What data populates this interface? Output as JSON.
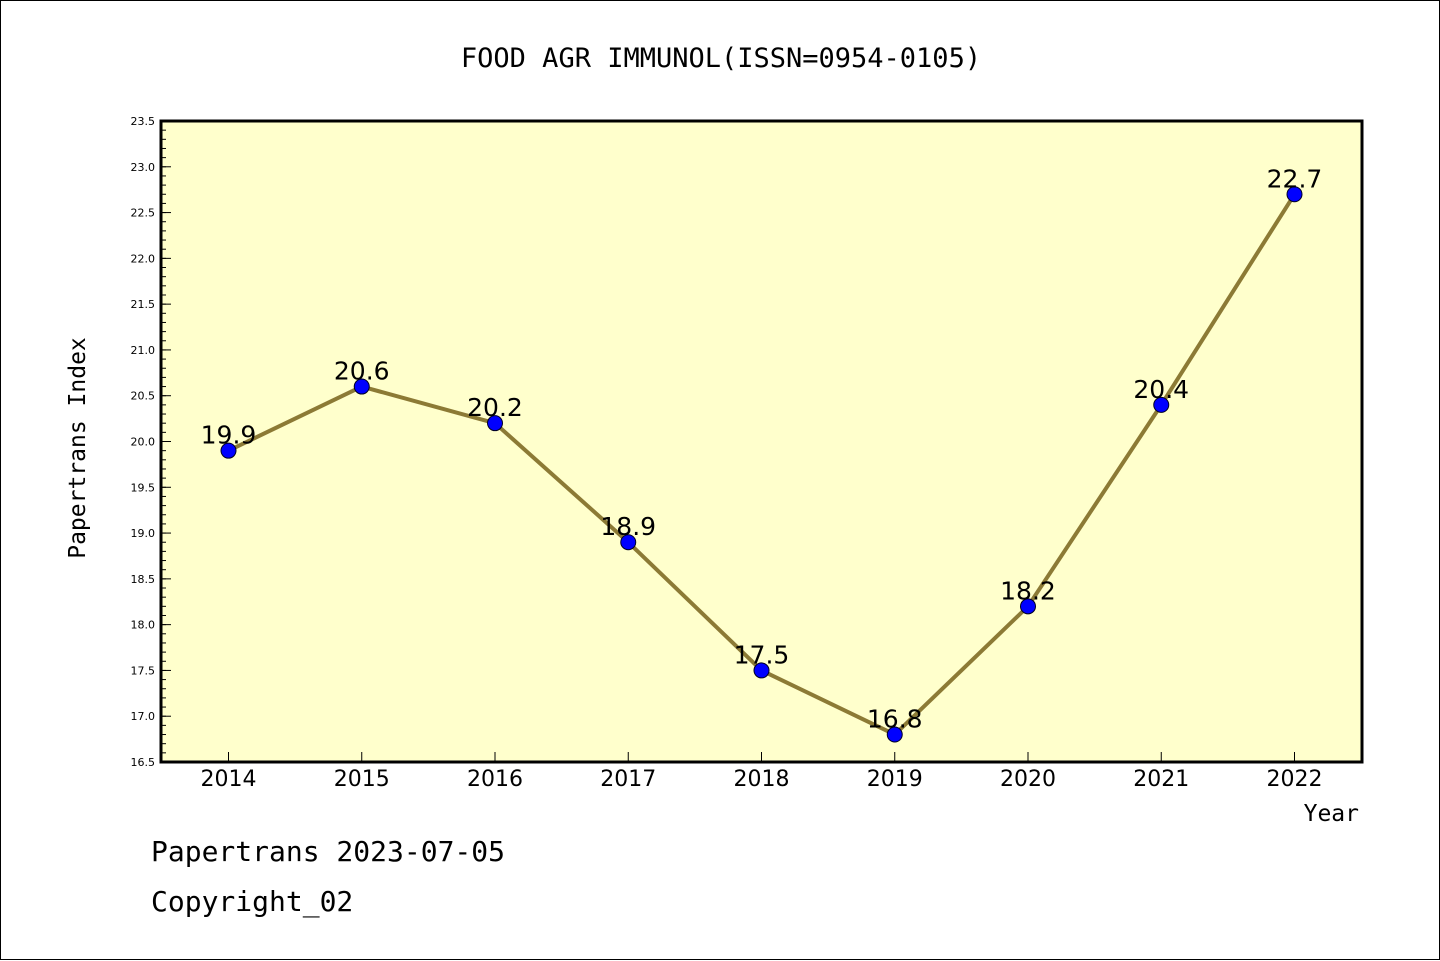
{
  "chart_data": {
    "type": "line",
    "title": "FOOD AGR IMMUNOL(ISSN=0954-0105)",
    "xlabel": "Year",
    "ylabel": "Papertrans Index",
    "categories": [
      "2014",
      "2015",
      "2016",
      "2017",
      "2018",
      "2019",
      "2020",
      "2021",
      "2022"
    ],
    "series": [
      {
        "values": [
          19.9,
          20.6,
          20.2,
          18.9,
          17.5,
          16.8,
          18.2,
          20.4,
          22.7
        ]
      }
    ],
    "data_labels": [
      "19.9",
      "20.6",
      "20.2",
      "18.9",
      "17.5",
      "16.8",
      "18.2",
      "20.4",
      "22.7"
    ],
    "ylim": [
      16.5,
      23.5
    ],
    "yticks": [
      "16.5",
      "17.0",
      "17.5",
      "18.0",
      "18.5",
      "19.0",
      "19.5",
      "20.0",
      "20.5",
      "21.0",
      "21.5",
      "22.0",
      "22.5",
      "23.0",
      "23.5"
    ],
    "grid": false,
    "colors": {
      "plot_background": "#ffffcc",
      "line": "#8c7a35",
      "marker": "#0000ff"
    }
  },
  "footer": {
    "date_line": "Papertrans 2023-07-05",
    "copyright": "Copyright_02"
  }
}
